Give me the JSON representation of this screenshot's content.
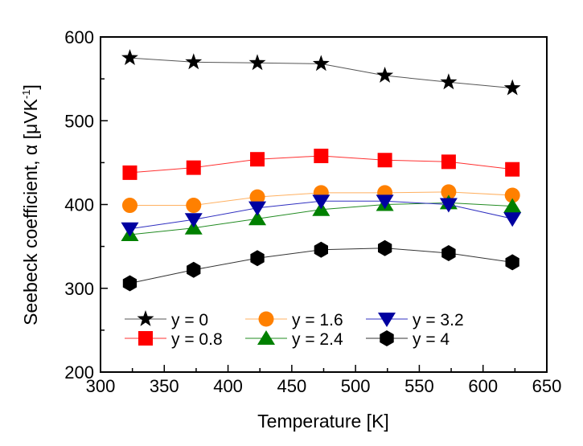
{
  "chart_data": {
    "type": "line",
    "title": "",
    "xlabel": "Temperature [K]",
    "ylabel_main": "Seebeck coefficient, α [μVK",
    "ylabel_sup": "-1",
    "ylabel_end": "]",
    "xlim": [
      300,
      650
    ],
    "ylim": [
      200,
      600
    ],
    "xticks": [
      300,
      350,
      400,
      450,
      500,
      550,
      600,
      650
    ],
    "yticks": [
      200,
      300,
      400,
      500,
      600
    ],
    "xtick_labels": [
      "300",
      "350",
      "400",
      "450",
      "500",
      "550",
      "600",
      "650"
    ],
    "ytick_labels": [
      "200",
      "300",
      "400",
      "500",
      "600"
    ],
    "x_minor_step": 25,
    "y_minor_step": 50,
    "grid": false,
    "legend_position": "bottom-left",
    "x": [
      323,
      373,
      423,
      473,
      523,
      573,
      623
    ],
    "series": [
      {
        "name": "y = 0",
        "marker": "star",
        "color": "#000000",
        "line_color": "#555555",
        "values": [
          575,
          570,
          569,
          568,
          554,
          546,
          539
        ]
      },
      {
        "name": "y = 0.8",
        "marker": "square",
        "color": "#ff0000",
        "line_color": "#ff3030",
        "values": [
          438,
          444,
          454,
          458,
          453,
          451,
          442
        ]
      },
      {
        "name": "y = 1.6",
        "marker": "circle",
        "color": "#ff8000",
        "line_color": "#ffb060",
        "values": [
          399,
          399,
          409,
          414,
          414,
          415,
          411
        ]
      },
      {
        "name": "y = 2.4",
        "marker": "triangle-up",
        "color": "#008000",
        "line_color": "#228b22",
        "values": [
          364,
          372,
          383,
          394,
          400,
          402,
          398
        ]
      },
      {
        "name": "y = 3.2",
        "marker": "triangle-down",
        "color": "#0000a0",
        "line_color": "#3030c0",
        "values": [
          371,
          382,
          396,
          404,
          404,
          400,
          383
        ]
      },
      {
        "name": "y = 4",
        "marker": "hexagon",
        "color": "#000000",
        "line_color": "#333333",
        "values": [
          306,
          322,
          336,
          346,
          348,
          342,
          331
        ]
      }
    ],
    "legend_order": [
      "y = 0",
      "y = 1.6",
      "y = 3.2",
      "y = 0.8",
      "y = 2.4",
      "y = 4"
    ]
  }
}
